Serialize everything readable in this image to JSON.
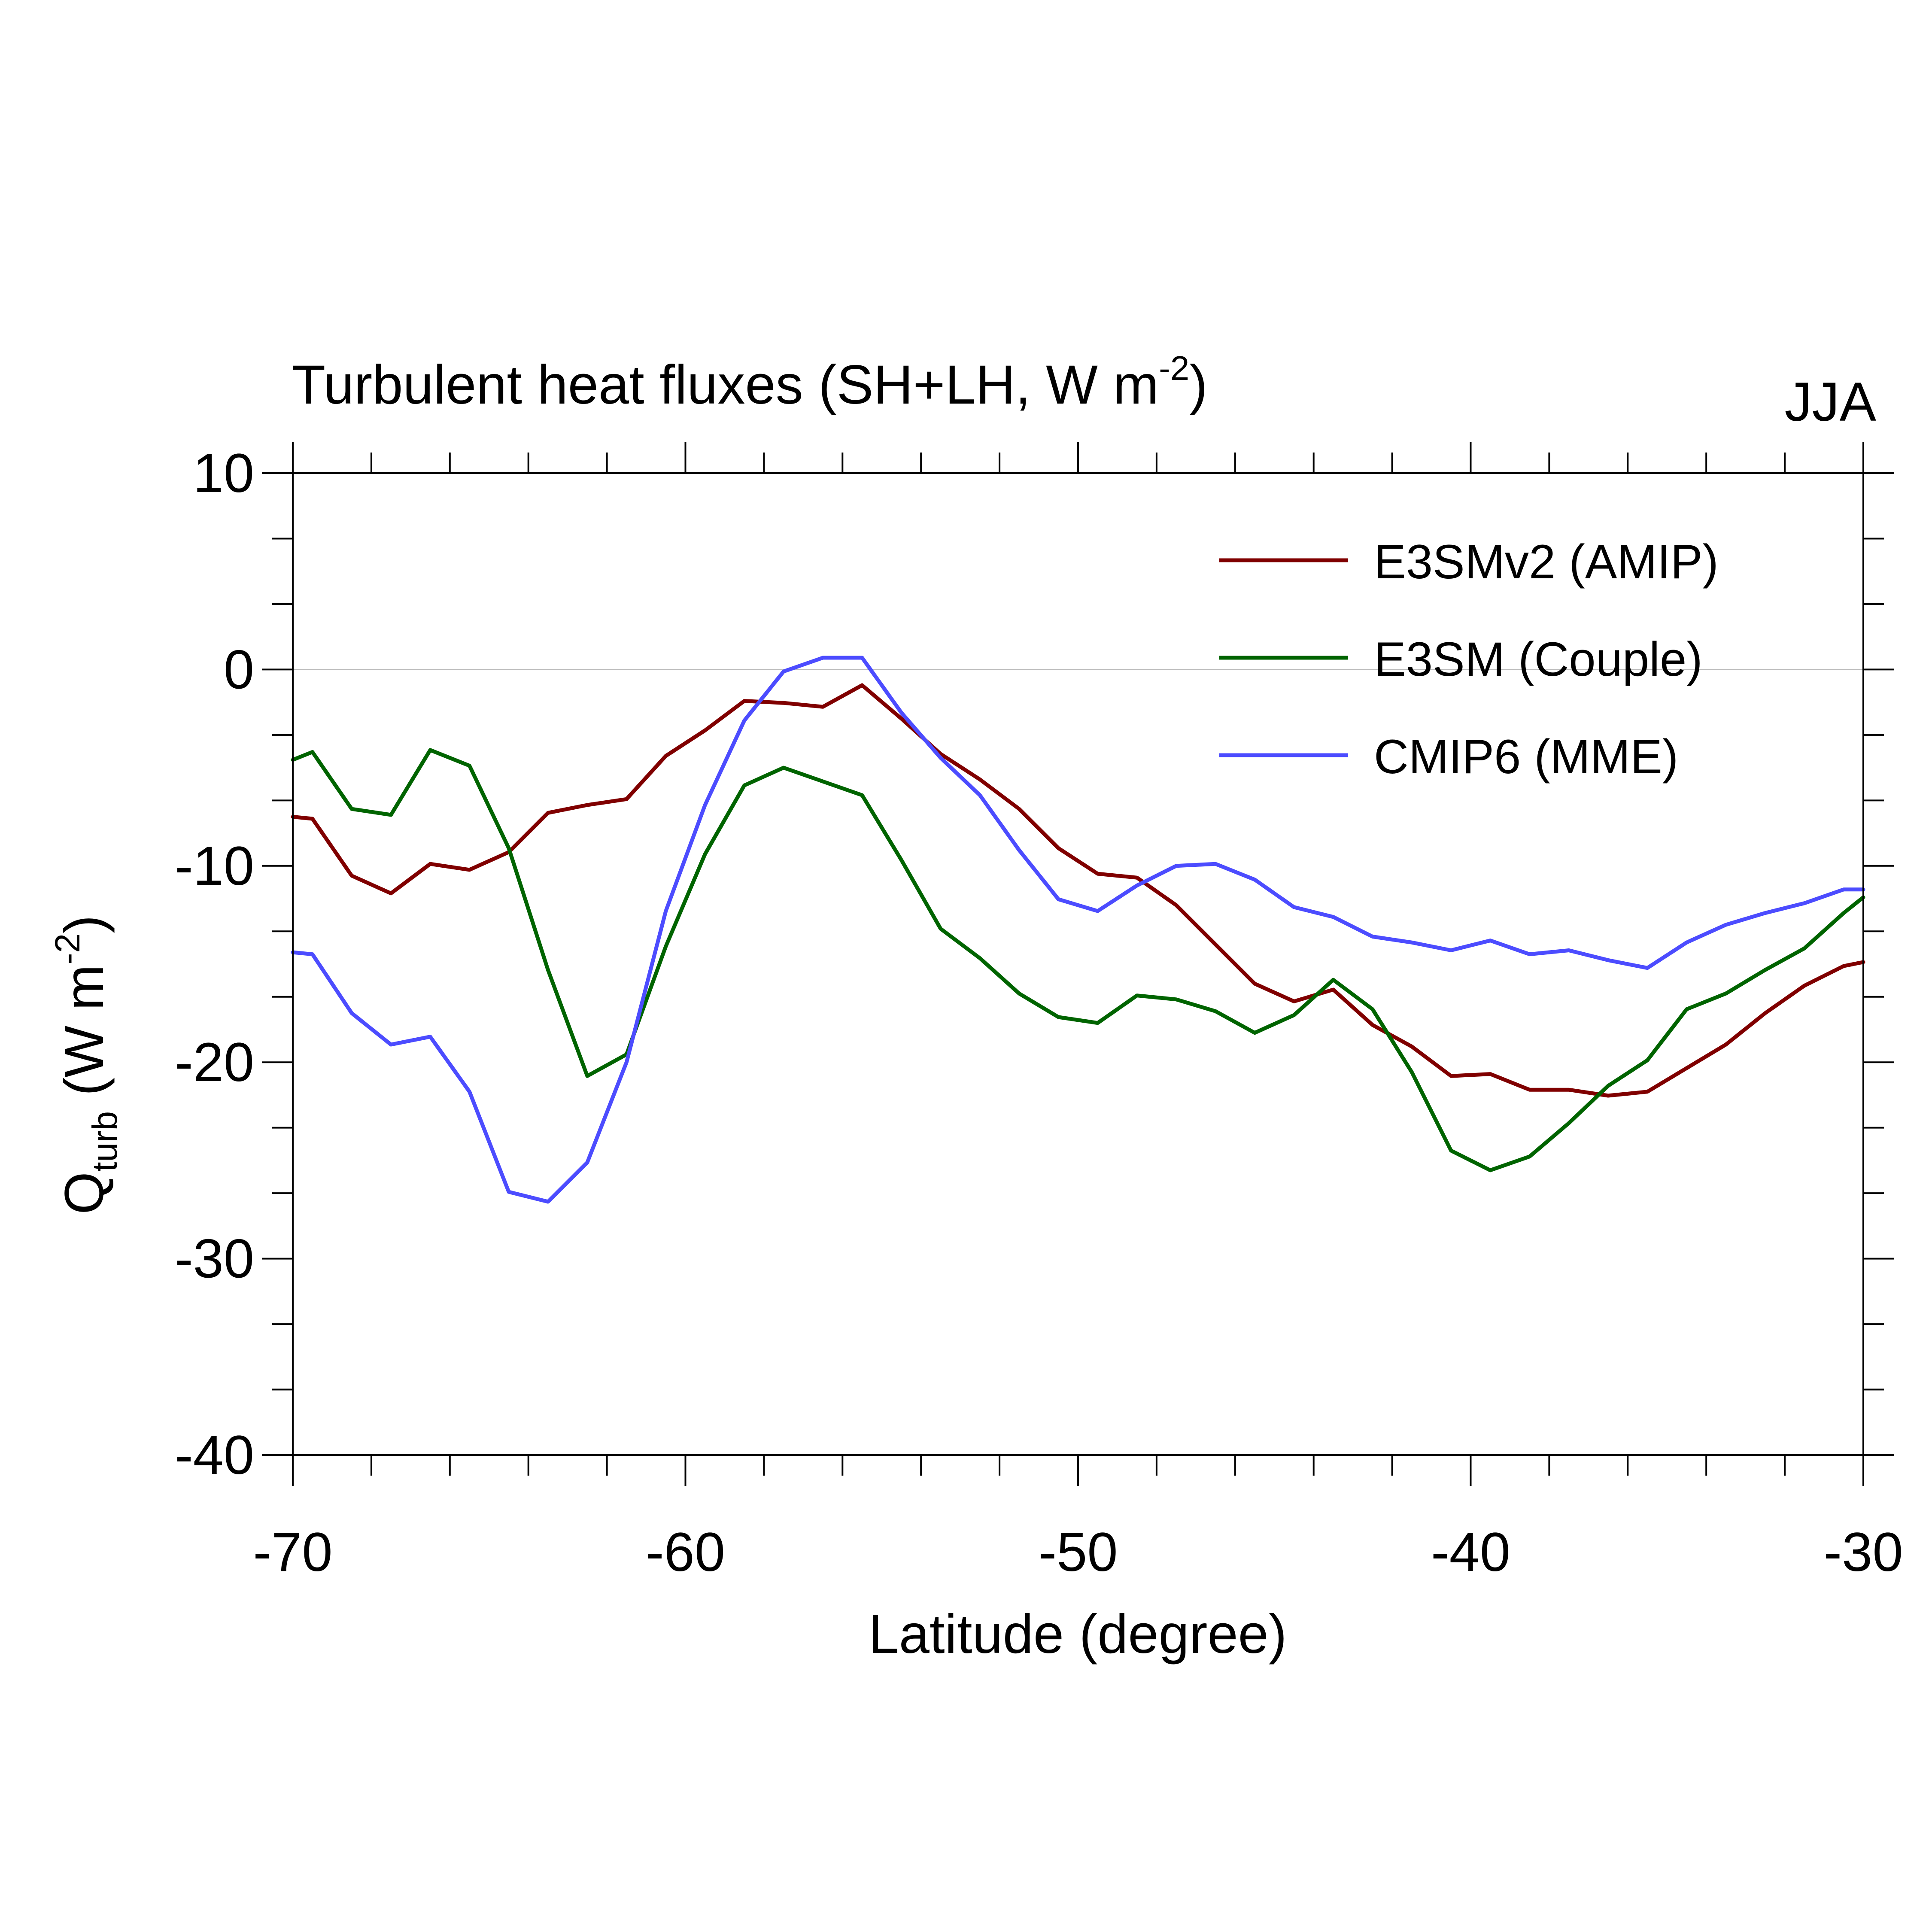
{
  "title": {
    "main": "Turbulent heat fluxes (SH+LH, W m",
    "main_sup": "-2",
    "main_close": ")",
    "season": "JJA"
  },
  "axes": {
    "x_label": "Latitude (degree)",
    "y_label_base": "Q",
    "y_label_sub": "turb",
    "y_label_unit": " (W m",
    "y_label_sup": "-2",
    "y_label_close": ")"
  },
  "chart_data": {
    "type": "line",
    "xlim": [
      -70,
      -30
    ],
    "ylim": [
      -40,
      10
    ],
    "x_ticks": [
      -70,
      -60,
      -50,
      -40,
      -30
    ],
    "x_tick_labels": [
      "-70",
      "-60",
      "-50",
      "-40",
      "-30"
    ],
    "y_ticks": [
      10,
      0,
      -10,
      -20,
      -30,
      -40
    ],
    "y_tick_labels": [
      "10",
      "0",
      "-10",
      "-20",
      "-30",
      "-40"
    ],
    "x_minor_step": 2,
    "y_minor_step": 3.333,
    "zero_line": true,
    "grid": false,
    "legend_position": "top-right",
    "x": [
      -70,
      -69.5,
      -68.5,
      -67.5,
      -66.5,
      -65.5,
      -64.5,
      -63.5,
      -62.5,
      -61.5,
      -60.5,
      -59.5,
      -58.5,
      -57.5,
      -56.5,
      -55.5,
      -54.5,
      -53.5,
      -52.5,
      -51.5,
      -50.5,
      -49.5,
      -48.5,
      -47.5,
      -46.5,
      -45.5,
      -44.5,
      -43.5,
      -42.5,
      -41.5,
      -40.5,
      -39.5,
      -38.5,
      -37.5,
      -36.5,
      -35.5,
      -34.5,
      -33.5,
      -32.5,
      -31.5,
      -30.5,
      -30
    ],
    "series": [
      {
        "name": "E3SMv2 (AMIP)",
        "color": "#800000",
        "values": [
          -7.5,
          -7.6,
          -10.5,
          -11.4,
          -9.9,
          -10.2,
          -9.3,
          -7.3,
          -6.9,
          -6.6,
          -4.4,
          -3.1,
          -1.6,
          -1.7,
          -1.9,
          -0.8,
          -2.5,
          -4.3,
          -5.6,
          -7.1,
          -9.1,
          -10.4,
          -10.6,
          -12.0,
          -14.0,
          -16.0,
          -16.9,
          -16.3,
          -18.1,
          -19.2,
          -20.7,
          -20.6,
          -21.4,
          -21.4,
          -21.7,
          -21.5,
          -20.3,
          -19.1,
          -17.5,
          -16.1,
          -15.1,
          -14.9
        ]
      },
      {
        "name": "E3SM (Couple)",
        "color": "#006400",
        "values": [
          -4.6,
          -4.2,
          -7.1,
          -7.4,
          -4.1,
          -4.9,
          -9.1,
          -15.3,
          -20.7,
          -19.6,
          -14.1,
          -9.4,
          -5.9,
          -5.0,
          -5.7,
          -6.4,
          -9.7,
          -13.2,
          -14.7,
          -16.5,
          -17.7,
          -18.0,
          -16.6,
          -16.8,
          -17.4,
          -18.5,
          -17.6,
          -15.8,
          -17.3,
          -20.5,
          -24.5,
          -25.5,
          -24.8,
          -23.1,
          -21.2,
          -19.9,
          -17.3,
          -16.5,
          -15.3,
          -14.2,
          -12.4,
          -11.6
        ]
      },
      {
        "name": "CMIP6 (MME)",
        "color": "#4c4cff",
        "values": [
          -14.4,
          -14.5,
          -17.5,
          -19.1,
          -18.7,
          -21.5,
          -26.6,
          -27.1,
          -25.1,
          -20.0,
          -12.3,
          -6.9,
          -2.6,
          -0.1,
          0.6,
          0.6,
          -2.2,
          -4.5,
          -6.4,
          -9.2,
          -11.7,
          -12.3,
          -11.0,
          -10.0,
          -9.9,
          -10.7,
          -12.1,
          -12.6,
          -13.6,
          -13.9,
          -14.3,
          -13.8,
          -14.5,
          -14.3,
          -14.8,
          -15.2,
          -13.9,
          -13.0,
          -12.4,
          -11.9,
          -11.2,
          -11.2
        ]
      }
    ]
  }
}
